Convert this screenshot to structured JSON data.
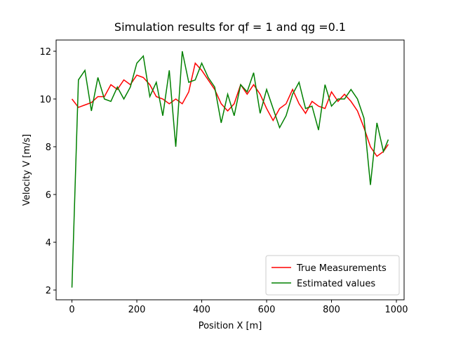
{
  "chart_data": {
    "type": "line",
    "title": "Simulation results for qf = 1 and qg =0.1",
    "x_label": "Position X [m]",
    "y_label": "Velocity V [m/s]",
    "x": [
      0,
      20,
      40,
      60,
      80,
      100,
      120,
      140,
      160,
      180,
      200,
      220,
      240,
      260,
      280,
      300,
      320,
      340,
      360,
      380,
      400,
      420,
      440,
      460,
      480,
      500,
      520,
      540,
      560,
      580,
      600,
      620,
      640,
      660,
      680,
      700,
      720,
      740,
      760,
      780,
      800,
      820,
      840,
      860,
      880,
      900,
      920,
      940,
      960,
      975
    ],
    "series": [
      {
        "name": "True Measurements",
        "color": "#ff0000",
        "values": [
          10.0,
          9.65,
          9.75,
          9.85,
          10.1,
          10.1,
          10.6,
          10.4,
          10.8,
          10.6,
          11.0,
          10.9,
          10.6,
          10.1,
          10.0,
          9.8,
          10.0,
          9.8,
          10.3,
          11.5,
          11.2,
          10.8,
          10.4,
          9.8,
          9.5,
          9.8,
          10.6,
          10.2,
          10.6,
          10.2,
          9.6,
          9.1,
          9.6,
          9.8,
          10.4,
          9.8,
          9.4,
          9.9,
          9.7,
          9.6,
          10.3,
          9.9,
          10.2,
          9.9,
          9.5,
          8.8,
          8.0,
          7.6,
          7.8,
          8.1
        ]
      },
      {
        "name": "Estimated values",
        "color": "#008000",
        "values": [
          2.1,
          10.8,
          11.2,
          9.5,
          10.9,
          10.0,
          9.9,
          10.5,
          10.0,
          10.5,
          11.5,
          11.8,
          10.1,
          10.7,
          9.3,
          11.2,
          8.0,
          12.0,
          10.7,
          10.8,
          11.5,
          10.9,
          10.5,
          9.0,
          10.2,
          9.3,
          10.6,
          10.3,
          11.1,
          9.4,
          10.4,
          9.6,
          8.8,
          9.3,
          10.2,
          10.7,
          9.6,
          9.7,
          8.7,
          10.6,
          9.7,
          10.0,
          10.0,
          10.4,
          10.0,
          9.2,
          6.4,
          9.0,
          7.8,
          8.3
        ]
      }
    ],
    "xlim": [
      -48.75,
      1023.75
    ],
    "ylim": [
      1.59,
      12.47
    ],
    "xticks": [
      0,
      200,
      400,
      600,
      800,
      1000
    ],
    "yticks": [
      2,
      4,
      6,
      8,
      10,
      12
    ],
    "grid": false,
    "legend": "lower right"
  }
}
